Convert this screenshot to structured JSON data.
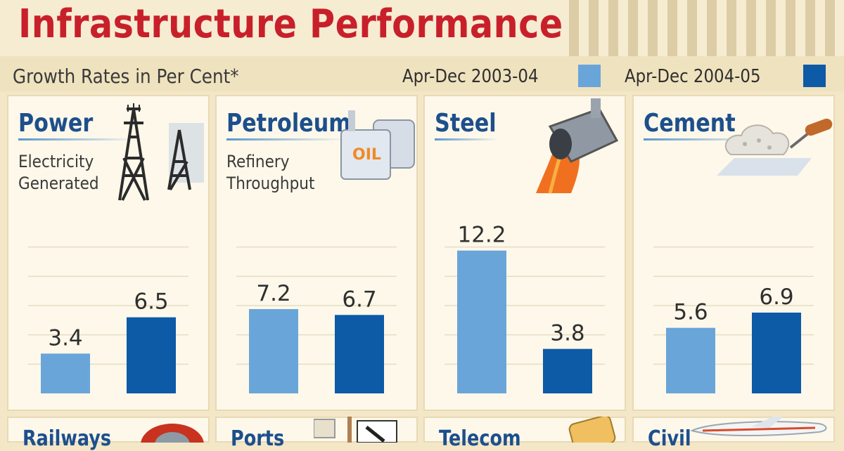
{
  "title": "Infrastructure Performance",
  "subtitle": "Growth Rates in Per Cent*",
  "legend": [
    {
      "label": "Apr-Dec 2003-04",
      "color": "#6aa5d9"
    },
    {
      "label": "Apr-Dec 2004-05",
      "color": "#0d5aa7"
    }
  ],
  "panels": [
    {
      "title": "Power",
      "subtitle": "Electricity\nGenerated",
      "icon": "power-tower-icon"
    },
    {
      "title": "Petroleum",
      "subtitle": "Refinery\nThroughput",
      "icon": "oil-tank-icon",
      "icon_text": "OIL"
    },
    {
      "title": "Steel",
      "subtitle": "",
      "icon": "steel-ladle-icon"
    },
    {
      "title": "Cement",
      "subtitle": "",
      "icon": "cement-trowel-icon"
    }
  ],
  "bottom_panels": [
    {
      "title": "Railways",
      "icon": "locomotive-icon"
    },
    {
      "title": "Ports",
      "icon": "crane-icon"
    },
    {
      "title": "Telecom",
      "icon": "telephone-icon"
    },
    {
      "title": "Civil",
      "icon": "airplane-icon"
    }
  ],
  "chart_data": {
    "type": "bar",
    "title": "Infrastructure Performance",
    "subtitle": "Growth Rates in Per Cent*",
    "categories": [
      "Power",
      "Petroleum",
      "Steel",
      "Cement"
    ],
    "series": [
      {
        "name": "Apr-Dec 2003-04",
        "values": [
          3.4,
          7.2,
          12.2,
          5.6
        ],
        "labels": [
          "3.4",
          "7.2",
          "12.2",
          "5.6"
        ]
      },
      {
        "name": "Apr-Dec 2004-05",
        "values": [
          6.5,
          6.7,
          3.8,
          6.9
        ],
        "labels": [
          "6.5",
          "6.7",
          "3.8",
          "6.9"
        ]
      }
    ],
    "ylim": [
      0,
      15
    ],
    "grid": true,
    "legend_position": "top-right",
    "xlabel": "",
    "ylabel": ""
  }
}
